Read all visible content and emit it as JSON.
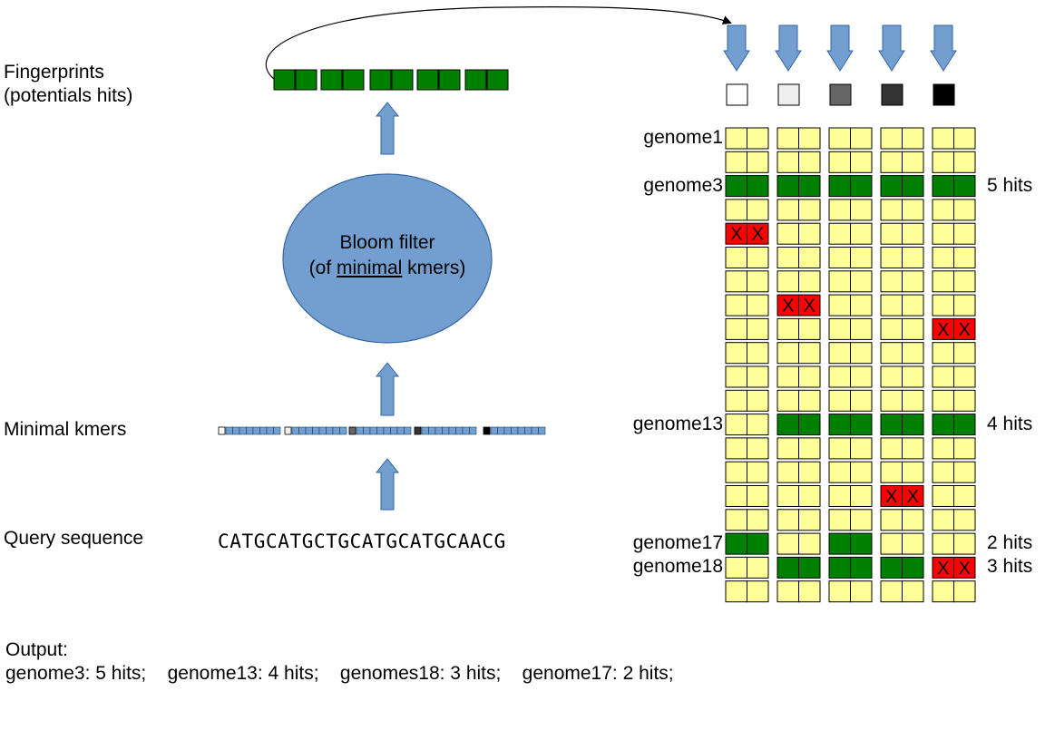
{
  "labels": {
    "fingerprints_1": "Fingerprints",
    "fingerprints_2": "(potentials hits)",
    "minimal_kmers": "Minimal kmers",
    "query_sequence": "Query sequence",
    "query_value": "CATGCATGCTGCATGCATGCAACG",
    "bloom_1": "Bloom filter",
    "bloom_2_pre": "(of ",
    "bloom_2_u": "minimal",
    "bloom_2_post": " kmers)"
  },
  "grid": {
    "column_markers": [
      "#ffffff",
      "#eeeeee",
      "#666666",
      "#333333",
      "#000000"
    ],
    "rows": [
      {
        "genome": "genome1",
        "hits": "",
        "cells": [
          "n",
          "n",
          "n",
          "n",
          "n"
        ]
      },
      {
        "genome": "",
        "hits": "",
        "cells": [
          "n",
          "n",
          "n",
          "n",
          "n"
        ]
      },
      {
        "genome": "genome3",
        "hits": "5 hits",
        "cells": [
          "g",
          "g",
          "g",
          "g",
          "g"
        ]
      },
      {
        "genome": "",
        "hits": "",
        "cells": [
          "n",
          "n",
          "n",
          "n",
          "n"
        ]
      },
      {
        "genome": "",
        "hits": "",
        "cells": [
          "x",
          "n",
          "n",
          "n",
          "n"
        ]
      },
      {
        "genome": "",
        "hits": "",
        "cells": [
          "n",
          "n",
          "n",
          "n",
          "n"
        ]
      },
      {
        "genome": "",
        "hits": "",
        "cells": [
          "n",
          "n",
          "n",
          "n",
          "n"
        ]
      },
      {
        "genome": "",
        "hits": "",
        "cells": [
          "n",
          "x",
          "n",
          "n",
          "n"
        ]
      },
      {
        "genome": "",
        "hits": "",
        "cells": [
          "n",
          "n",
          "n",
          "n",
          "x"
        ]
      },
      {
        "genome": "",
        "hits": "",
        "cells": [
          "n",
          "n",
          "n",
          "n",
          "n"
        ]
      },
      {
        "genome": "",
        "hits": "",
        "cells": [
          "n",
          "n",
          "n",
          "n",
          "n"
        ]
      },
      {
        "genome": "",
        "hits": "",
        "cells": [
          "n",
          "n",
          "n",
          "n",
          "n"
        ]
      },
      {
        "genome": "genome13",
        "hits": "4 hits",
        "cells": [
          "n",
          "g",
          "g",
          "g",
          "g"
        ]
      },
      {
        "genome": "",
        "hits": "",
        "cells": [
          "n",
          "n",
          "n",
          "n",
          "n"
        ]
      },
      {
        "genome": "",
        "hits": "",
        "cells": [
          "n",
          "n",
          "n",
          "n",
          "n"
        ]
      },
      {
        "genome": "",
        "hits": "",
        "cells": [
          "n",
          "n",
          "n",
          "x",
          "n"
        ]
      },
      {
        "genome": "",
        "hits": "",
        "cells": [
          "n",
          "n",
          "n",
          "n",
          "n"
        ]
      },
      {
        "genome": "genome17",
        "hits": "2 hits",
        "cells": [
          "g",
          "n",
          "g",
          "n",
          "n"
        ]
      },
      {
        "genome": "genome18",
        "hits": "3 hits",
        "cells": [
          "n",
          "g",
          "g",
          "g",
          "x"
        ]
      },
      {
        "genome": "",
        "hits": "",
        "cells": [
          "n",
          "n",
          "n",
          "n",
          "n"
        ]
      }
    ],
    "x_mark": "X"
  },
  "output": {
    "title": "Output:",
    "line": "genome3: 5 hits;    genome13: 4 hits;    genomes18: 3 hits;    genome17: 2 hits;"
  },
  "colors": {
    "yellow": "#ffff99",
    "green": "#008000",
    "red": "#ff0000",
    "blue": "#729fcf",
    "blue_dark": "#3465a4"
  }
}
